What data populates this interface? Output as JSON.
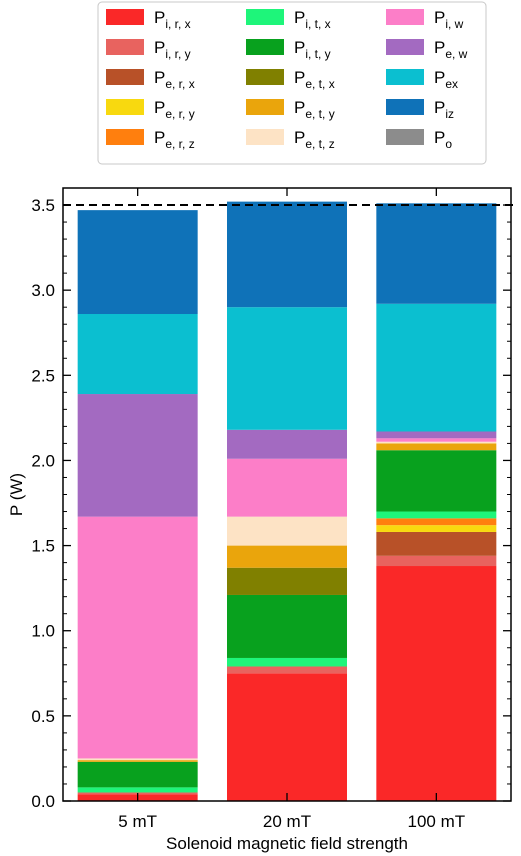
{
  "chart_data": {
    "type": "bar",
    "stacked": true,
    "categories": [
      "5 mT",
      "20 mT",
      "100 mT"
    ],
    "xlabel": "Solenoid magnetic field strength",
    "ylabel": "P (W)",
    "ylim": [
      0,
      3.6
    ],
    "yticks": [
      "0.0",
      "0.5",
      "1.0",
      "1.5",
      "2.0",
      "2.5",
      "3.0",
      "3.5"
    ],
    "reference_line": {
      "y": 3.5,
      "style": "dashed",
      "color": "#000000"
    },
    "legend_position": "top",
    "legend_columns": 3,
    "series": [
      {
        "name": "P",
        "sub": "i, r, x",
        "color": "#fa2828",
        "values": [
          0.04,
          0.75,
          1.38
        ]
      },
      {
        "name": "P",
        "sub": "i, r, y",
        "color": "#e8635f",
        "values": [
          0.01,
          0.04,
          0.06
        ]
      },
      {
        "name": "P",
        "sub": "e, r, x",
        "color": "#b85128",
        "values": [
          0.0,
          0.0,
          0.14
        ]
      },
      {
        "name": "P",
        "sub": "e, r, y",
        "color": "#f8d90f",
        "values": [
          0.0,
          0.0,
          0.04
        ]
      },
      {
        "name": "P",
        "sub": "e, r, z",
        "color": "#ff7f0e",
        "values": [
          0.0,
          0.0,
          0.04
        ]
      },
      {
        "name": "P",
        "sub": "i, t, x",
        "color": "#1ef57a",
        "values": [
          0.03,
          0.05,
          0.04
        ]
      },
      {
        "name": "P",
        "sub": "i, t, y",
        "color": "#08a11e",
        "values": [
          0.15,
          0.37,
          0.36
        ]
      },
      {
        "name": "P",
        "sub": "e, t, x",
        "color": "#808000",
        "values": [
          0.0,
          0.16,
          0.0
        ]
      },
      {
        "name": "P",
        "sub": "e, t, y",
        "color": "#eaa50c",
        "values": [
          0.01,
          0.13,
          0.04
        ]
      },
      {
        "name": "P",
        "sub": "e, t, z",
        "color": "#fde3c5",
        "values": [
          0.01,
          0.17,
          0.01
        ]
      },
      {
        "name": "P",
        "sub": "i, w",
        "color": "#fc7ec8",
        "values": [
          1.42,
          0.34,
          0.02
        ]
      },
      {
        "name": "P",
        "sub": "e, w",
        "color": "#a36ac1",
        "values": [
          0.72,
          0.17,
          0.04
        ]
      },
      {
        "name": "P",
        "sub": "ex",
        "color": "#0bbfd0",
        "values": [
          0.47,
          0.72,
          0.75
        ]
      },
      {
        "name": "P",
        "sub": "iz",
        "color": "#0f72b8",
        "values": [
          0.61,
          0.62,
          0.59
        ]
      },
      {
        "name": "P",
        "sub": "o",
        "color": "#8c8c8c",
        "values": [
          0.0,
          0.0,
          0.0
        ]
      }
    ]
  }
}
